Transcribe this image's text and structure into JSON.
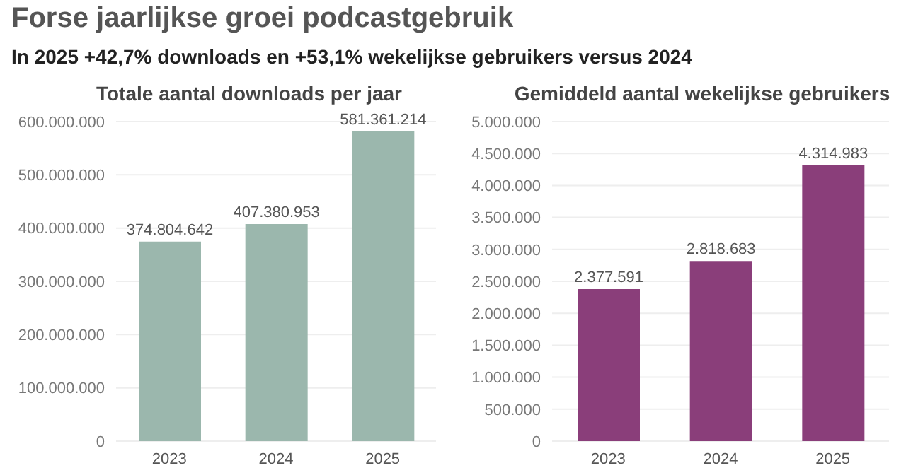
{
  "chart_data": [
    {
      "type": "bar",
      "title": "Totale aantal downloads per jaar",
      "annotations": [
        "Forse jaarlijkse groei podcastgebruik",
        "In 2025 +42,7% downloads en +53,1% wekelijkse gebruikers versus 2024"
      ],
      "categories": [
        "2023",
        "2024",
        "2025"
      ],
      "values": [
        374804642,
        407380953,
        581361214
      ],
      "color": "#9bb7ad",
      "value_labels": [
        "374.804.642",
        "407.380.953",
        "581.361.214"
      ],
      "ylim": [
        0,
        600000000
      ],
      "yticks": [
        0,
        {
          "value": 100000000,
          "label": "100.000.000"
        },
        {
          "value": 200000000,
          "label": "200.000.000"
        },
        {
          "value": 300000000,
          "label": "300.000.000"
        },
        {
          "value": 400000000,
          "label": "400.000.000"
        },
        {
          "value": 500000000,
          "label": "500.000.000"
        },
        {
          "value": 600000000,
          "label": "600.000.000"
        }
      ],
      "grid": "y"
    },
    {
      "type": "bar",
      "title": "Gemiddeld aantal wekelijkse gebruikers",
      "categories": [
        "2023",
        "2024",
        "2025"
      ],
      "values": [
        2377591,
        2818683,
        4314983
      ],
      "color": "#8a3e7a",
      "value_labels": [
        "2.377.591",
        "2.818.683",
        "4.314.983"
      ],
      "ylim": [
        0,
        5000000
      ],
      "yticks": [
        0,
        {
          "value": 500000,
          "label": "500.000"
        },
        {
          "value": 1000000,
          "label": "1.000.000"
        },
        {
          "value": 1500000,
          "label": "1.500.000"
        },
        {
          "value": 2000000,
          "label": "2.000.000"
        },
        {
          "value": 2500000,
          "label": "2.500.000"
        },
        {
          "value": 3000000,
          "label": "3.000.000"
        },
        {
          "value": 3500000,
          "label": "3.500.000"
        },
        {
          "value": 4000000,
          "label": "4.000.000"
        },
        {
          "value": 4500000,
          "label": "4.500.000"
        },
        {
          "value": 5000000,
          "label": "5.000.000"
        }
      ],
      "grid": "y"
    }
  ]
}
